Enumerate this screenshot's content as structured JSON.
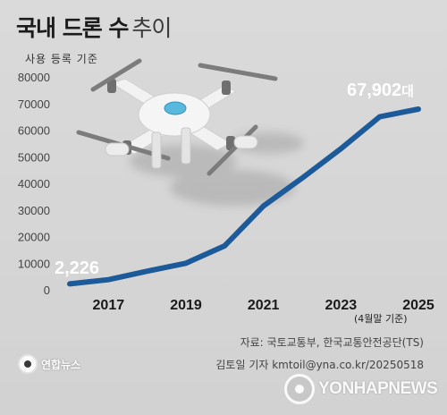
{
  "header": {
    "title_bold": "국내 드론 수",
    "title_light": "추이",
    "subtitle": "사용 등록 기준"
  },
  "colors": {
    "line": "#1c5a9a",
    "background": "#d6d6d6",
    "drone_body": "#f2f2f2",
    "drone_arm": "#7c7c7c",
    "drone_center": "#58b9de"
  },
  "chart_data": {
    "type": "line",
    "title": "국내 드론 수 추이",
    "subtitle": "사용 등록 기준",
    "xlabel": "",
    "ylabel": "",
    "x": [
      2016,
      2017,
      2018,
      2019,
      2020,
      2021,
      2022,
      2023,
      2024,
      2025
    ],
    "values": [
      2226,
      3800,
      7000,
      10000,
      16500,
      31500,
      42000,
      53000,
      65000,
      67902
    ],
    "xticks": [
      "2017",
      "2019",
      "2021",
      "2023",
      "2025"
    ],
    "yticks": [
      0,
      10000,
      20000,
      30000,
      40000,
      50000,
      60000,
      70000,
      80000
    ],
    "ylim": [
      0,
      80000
    ],
    "grid": false,
    "legend": "none",
    "annotations": {
      "first_value": "2,226",
      "last_value": "67,902",
      "last_unit": "대"
    }
  },
  "footer": {
    "note": "(4월말 기준)",
    "source": "자료: 국토교통부, 한국교통안전공단(TS)",
    "credit": "김토일 기자 kmtoil@yna.co.kr/20250518",
    "logo_left": "연합뉴스",
    "watermark": "YONHAPNEWS"
  },
  "icons": {
    "drone": "drone-icon",
    "logo_left": "yonhap-logo-icon",
    "watermark": "yonhap-watermark-icon"
  }
}
